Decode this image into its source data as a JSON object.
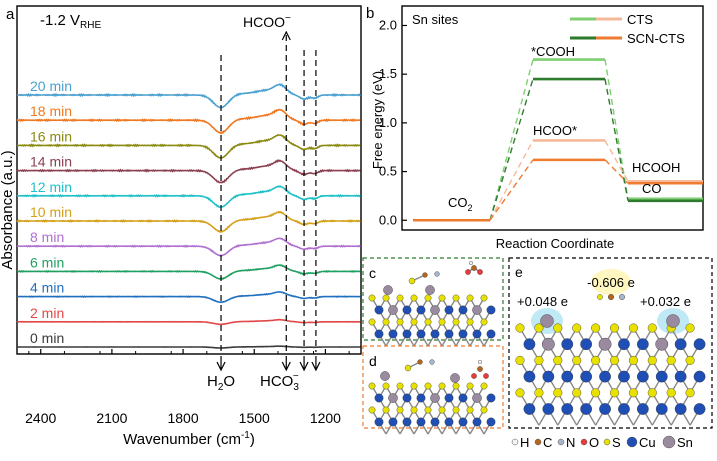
{
  "panels": {
    "a": {
      "label": "a",
      "potential_main": "-1.2 V",
      "potential_sub": "RHE",
      "peak_top": "HCOO",
      "peak_top_sup": "−",
      "peak_h2o": "H",
      "peak_h2o_sub": "2",
      "peak_h2o_end": "O",
      "peak_hco3": "HCO",
      "peak_hco3_sub": "3",
      "peak_hco3_sup": "−",
      "xlabel_main": "Wavenumber (cm",
      "xlabel_sup": "-1",
      "xlabel_end": ")",
      "ylabel": "Absorbance (a.u.)"
    },
    "b": {
      "label": "b",
      "subtitle": "Sn sites",
      "ylabel": "Free energy (eV)",
      "xlabel": "Reaction Coordinate",
      "state_co2": "CO",
      "state_co2_sub": "2",
      "state_cooh": "*COOH",
      "state_hcoo": "HCOO*",
      "state_hcooh": "HCOOH",
      "state_co": "CO"
    },
    "c": {
      "label": "c"
    },
    "d": {
      "label": "d"
    },
    "e": {
      "label": "e",
      "charge_center": "-0.606 e",
      "charge_left": "+0.048 e",
      "charge_right": "+0.032 e"
    }
  },
  "atom_legend": [
    {
      "symbol": "H",
      "color": "#f2f2f2"
    },
    {
      "symbol": "C",
      "color": "#b5651d"
    },
    {
      "symbol": "N",
      "color": "#a7b6cc"
    },
    {
      "symbol": "O",
      "color": "#ea3b3b"
    },
    {
      "symbol": "S",
      "color": "#e8e000"
    },
    {
      "symbol": "Cu",
      "color": "#1f4fb5"
    },
    {
      "symbol": "Sn",
      "color": "#9a8aa0"
    }
  ],
  "chart_data": [
    {
      "type": "line",
      "panel": "a",
      "xlabel": "Wavenumber (cm-1)",
      "ylabel": "Absorbance (a.u.)",
      "xlim": [
        2500,
        1050
      ],
      "x_reversed": true,
      "x_ticks": [
        2400,
        2100,
        1800,
        1500,
        1200
      ],
      "y_ticks_shown": false,
      "x_band_pos": [
        1640,
        1365,
        1290,
        1240
      ],
      "series": [
        {
          "name": "0 min",
          "color": "#3a3a3a",
          "offset": 0,
          "scale": 0.08
        },
        {
          "name": "2 min",
          "color": "#e0484a",
          "offset": 1,
          "scale": 0.2
        },
        {
          "name": "4 min",
          "color": "#2070c0",
          "offset": 2,
          "scale": 0.45
        },
        {
          "name": "6 min",
          "color": "#20a060",
          "offset": 3,
          "scale": 0.6
        },
        {
          "name": "8 min",
          "color": "#b070d0",
          "offset": 4,
          "scale": 0.75
        },
        {
          "name": "10 min",
          "color": "#d4a017",
          "offset": 5,
          "scale": 0.85
        },
        {
          "name": "12 min",
          "color": "#20c0c8",
          "offset": 6,
          "scale": 0.9
        },
        {
          "name": "14 min",
          "color": "#8b4050",
          "offset": 7,
          "scale": 0.95
        },
        {
          "name": "16 min",
          "color": "#8a8a10",
          "offset": 8,
          "scale": 1.0
        },
        {
          "name": "18 min",
          "color": "#f07820",
          "offset": 9,
          "scale": 1.0
        },
        {
          "name": "20 min",
          "color": "#4aa0d0",
          "offset": 10,
          "scale": 1.0
        }
      ]
    },
    {
      "type": "line",
      "panel": "b",
      "ylabel": "Free energy (eV)",
      "xlabel": "Reaction Coordinate",
      "ylim": [
        -0.1,
        2.2
      ],
      "y_ticks": [
        0.0,
        0.5,
        1.0,
        1.5,
        2.0
      ],
      "series": [
        {
          "name": "CTS",
          "color": "#7fce70",
          "path": "COOH",
          "values": [
            0.0,
            1.65,
            0.22
          ]
        },
        {
          "name": "SCN-CTS",
          "color": "#2e7a2e",
          "path": "COOH",
          "values": [
            0.0,
            1.45,
            0.2
          ]
        },
        {
          "color": "#f5b99a",
          "path": "HCOO",
          "values": [
            0.0,
            0.82,
            0.4
          ]
        },
        {
          "color": "#ee7b30",
          "path": "HCOO",
          "values": [
            0.0,
            0.62,
            0.38
          ]
        }
      ]
    }
  ]
}
